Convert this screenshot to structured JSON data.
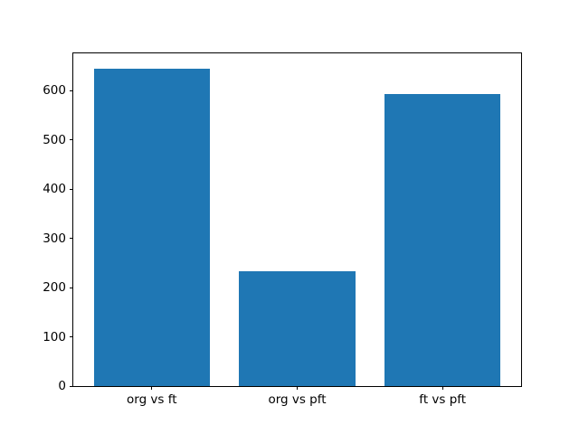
{
  "figure": {
    "background": "#ffffff",
    "title": ""
  },
  "chart_data": {
    "type": "bar",
    "categories": [
      "org vs ft",
      "org vs pft",
      "ft vs pft"
    ],
    "values": [
      645,
      233,
      594
    ],
    "title": "",
    "xlabel": "",
    "ylabel": "",
    "ylim": [
      0,
      676
    ],
    "yticks": [
      0,
      100,
      200,
      300,
      400,
      500,
      600
    ],
    "xlim": [
      -0.54,
      2.54
    ],
    "bar_width_fraction": 0.8,
    "bar_color": "#1f77b4",
    "spine_color": "#000000",
    "grid": false,
    "legend": null
  }
}
